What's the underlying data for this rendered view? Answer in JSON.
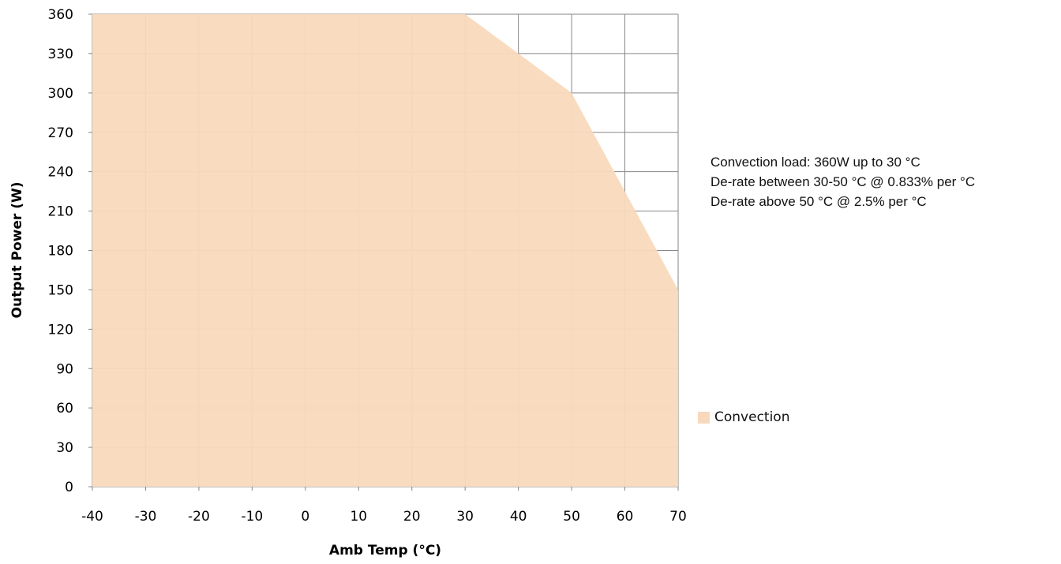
{
  "chart_data": {
    "type": "area",
    "xlabel": "Amb Temp (°C)",
    "ylabel": "Output Power (W)",
    "xlim": [
      -40,
      70
    ],
    "ylim": [
      0,
      360
    ],
    "x_ticks": [
      "-40",
      "-30",
      "-20",
      "-10",
      "0",
      "10",
      "20",
      "30",
      "40",
      "50",
      "60",
      "70"
    ],
    "y_ticks": [
      "0",
      "30",
      "60",
      "90",
      "120",
      "150",
      "180",
      "210",
      "240",
      "270",
      "300",
      "330",
      "360"
    ],
    "grid": true,
    "legend_position": "right",
    "series": [
      {
        "name": "Convection",
        "color": "#F9D9BD",
        "x": [
          -40,
          30,
          40,
          50,
          60,
          70
        ],
        "y": [
          360,
          360,
          330,
          300,
          225,
          150
        ]
      }
    ]
  },
  "notes": [
    "Convection load: 360W up to 30 °C",
    "De-rate between 30-50 °C @ 0.833% per °C",
    "De-rate above 50 °C @ 2.5% per °C"
  ],
  "colors": {
    "grid": "#878787",
    "fill": "#F9D9BD"
  }
}
